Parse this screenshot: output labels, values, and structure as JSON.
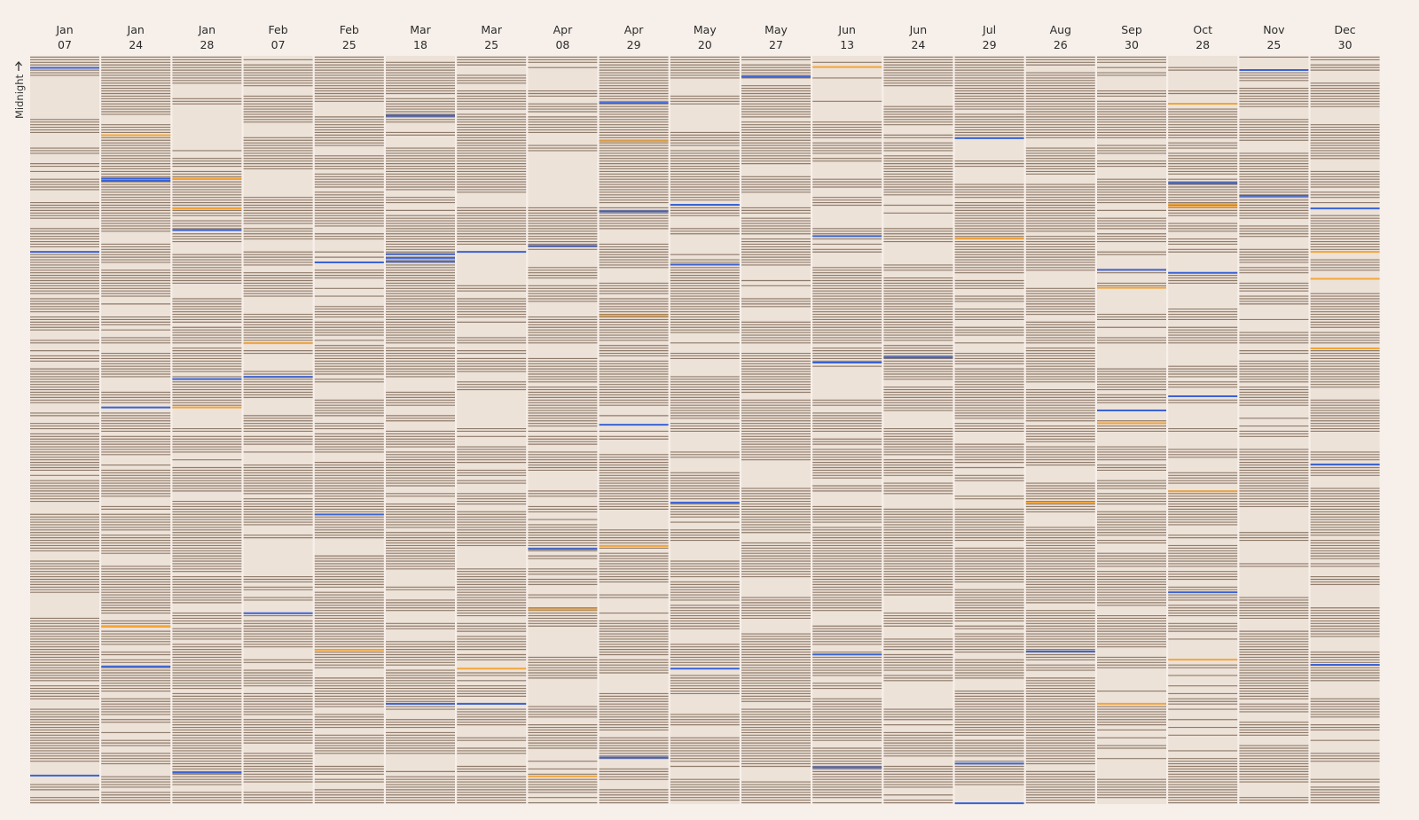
{
  "chart_data": {
    "type": "heatmap",
    "rows_per_column": 288,
    "axis_note": "Midnight",
    "legend": [],
    "colors": {
      "background": "#f7f0ea",
      "column_background": "#ede2d8",
      "mark": "#8f7b6b",
      "mark_blue": "#3a63d4",
      "mark_orange": "#f2a53a"
    },
    "columns": [
      {
        "month": "Jan",
        "day": "07",
        "density": 0.72,
        "blue": [
          0.016,
          0.262,
          0.962
        ],
        "orange": []
      },
      {
        "month": "Jan",
        "day": "24",
        "density": 0.8,
        "blue": [
          0.164,
          0.167,
          0.47,
          0.816
        ],
        "orange": [
          0.106,
          0.763
        ]
      },
      {
        "month": "Jan",
        "day": "28",
        "density": 0.8,
        "blue": [
          0.233,
          0.432,
          0.958
        ],
        "orange": [
          0.164,
          0.204,
          0.47
        ]
      },
      {
        "month": "Feb",
        "day": "07",
        "density": 0.78,
        "blue": [
          0.429,
          0.745
        ],
        "orange": [
          0.384
        ]
      },
      {
        "month": "Feb",
        "day": "25",
        "density": 0.7,
        "blue": [
          0.276,
          0.613
        ],
        "orange": [
          0.794
        ]
      },
      {
        "month": "Mar",
        "day": "18",
        "density": 0.83,
        "blue": [
          0.08,
          0.265,
          0.27,
          0.275,
          0.866
        ],
        "orange": []
      },
      {
        "month": "Mar",
        "day": "25",
        "density": 0.74,
        "blue": [
          0.262,
          0.866
        ],
        "orange": [
          0.819
        ]
      },
      {
        "month": "Apr",
        "day": "08",
        "density": 0.76,
        "blue": [
          0.254,
          0.659
        ],
        "orange": [
          0.74,
          0.963
        ]
      },
      {
        "month": "Apr",
        "day": "29",
        "density": 0.8,
        "blue": [
          0.063,
          0.208,
          0.493,
          0.938
        ],
        "orange": [
          0.114,
          0.347,
          0.655
        ]
      },
      {
        "month": "May",
        "day": "20",
        "density": 0.74,
        "blue": [
          0.199,
          0.279,
          0.597,
          0.819
        ],
        "orange": []
      },
      {
        "month": "May",
        "day": "27",
        "density": 0.82,
        "blue": [
          0.028
        ],
        "orange": []
      },
      {
        "month": "Jun",
        "day": "13",
        "density": 0.78,
        "blue": [
          0.241,
          0.41,
          0.8,
          0.951
        ],
        "orange": [
          0.015
        ]
      },
      {
        "month": "Jun",
        "day": "24",
        "density": 0.8,
        "blue": [
          0.403
        ],
        "orange": []
      },
      {
        "month": "Jul",
        "day": "29",
        "density": 0.76,
        "blue": [
          0.11,
          0.946,
          0.999
        ],
        "orange": [
          0.244
        ]
      },
      {
        "month": "Aug",
        "day": "26",
        "density": 0.86,
        "blue": [
          0.796
        ],
        "orange": [
          0.597
        ]
      },
      {
        "month": "Sep",
        "day": "30",
        "density": 0.66,
        "blue": [
          0.286,
          0.474
        ],
        "orange": [
          0.31,
          0.491,
          0.866
        ]
      },
      {
        "month": "Oct",
        "day": "28",
        "density": 0.72,
        "blue": [
          0.17,
          0.29,
          0.455,
          0.717
        ],
        "orange": [
          0.064,
          0.198,
          0.202,
          0.582,
          0.807
        ]
      },
      {
        "month": "Nov",
        "day": "25",
        "density": 0.8,
        "blue": [
          0.019,
          0.187
        ],
        "orange": []
      },
      {
        "month": "Dec",
        "day": "30",
        "density": 0.76,
        "blue": [
          0.204,
          0.546,
          0.814
        ],
        "orange": [
          0.262,
          0.298,
          0.391
        ]
      }
    ]
  }
}
